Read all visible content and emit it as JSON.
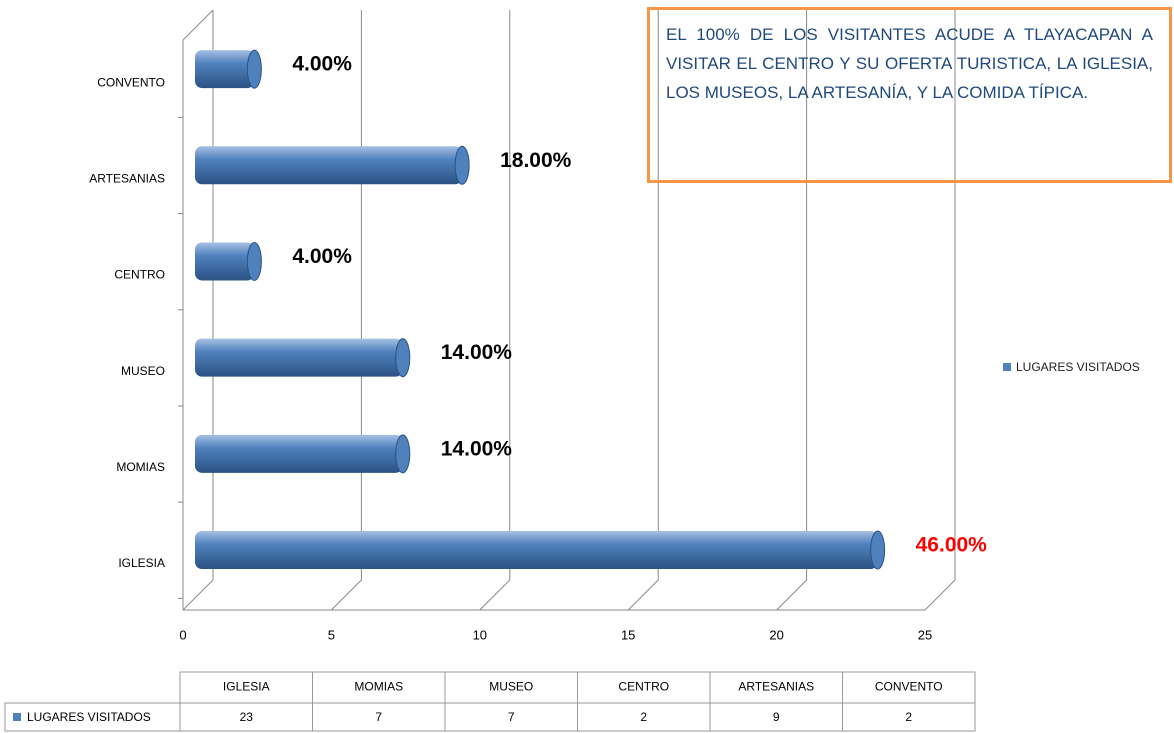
{
  "chart_data": {
    "type": "bar",
    "orientation": "horizontal",
    "categories": [
      "IGLESIA",
      "MOMIAS",
      "MUSEO",
      "CENTRO",
      "ARTESANIAS",
      "CONVENTO"
    ],
    "series": [
      {
        "name": "LUGARES VISITADOS",
        "color": "#4f81bd",
        "values": [
          23,
          7,
          7,
          2,
          9,
          2
        ],
        "value_labels": [
          "46.00%",
          "14.00%",
          "14.00%",
          "4.00%",
          "18.00%",
          "4.00%"
        ],
        "value_label_colors": [
          "#ff0000",
          "#000000",
          "#000000",
          "#000000",
          "#000000",
          "#000000"
        ]
      }
    ],
    "xlim": [
      0,
      25
    ],
    "xticks": [
      0,
      5,
      10,
      15,
      20,
      25
    ],
    "grid": true,
    "legend": "right",
    "data_table": true,
    "annotation": "EL 100% DE LOS VISITANTES ACUDE A TLAYACAPAN A VISITAR  EL CENTRO Y SU OFERTA TURISTICA, LA IGLESIA, LOS MUSEOS, LA ARTESANÍA, Y LA COMIDA TÍPICA."
  }
}
